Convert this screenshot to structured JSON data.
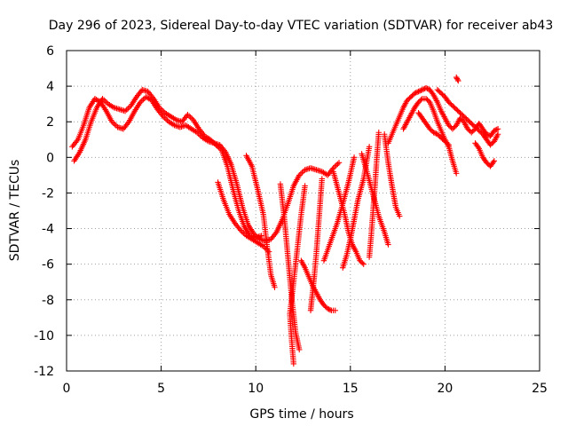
{
  "chart_data": {
    "type": "scatter",
    "title": "Day 296 of 2023, Sidereal Day-to-day VTEC variation (SDTVAR) for receiver ab43",
    "xlabel": "GPS time / hours",
    "ylabel": "SDTVAR / TECUs",
    "xlim": [
      0,
      25
    ],
    "ylim": [
      -12,
      6
    ],
    "xticks": [
      "0",
      "5",
      "10",
      "15",
      "20",
      "25"
    ],
    "yticks": [
      "6",
      "4",
      "2",
      "0",
      "-2",
      "-4",
      "-6",
      "-8",
      "-10",
      "-12"
    ],
    "grid": true,
    "marker": "plus",
    "color": "#ff0000",
    "series": [
      {
        "name": "arc-1",
        "points": [
          [
            0.3,
            0.6
          ],
          [
            0.6,
            1.0
          ],
          [
            0.9,
            1.8
          ],
          [
            1.2,
            2.8
          ],
          [
            1.5,
            3.3
          ],
          [
            1.8,
            3.1
          ],
          [
            2.1,
            2.6
          ],
          [
            2.4,
            2.0
          ],
          [
            2.7,
            1.7
          ],
          [
            3.0,
            1.6
          ],
          [
            3.3,
            2.0
          ],
          [
            3.6,
            2.6
          ],
          [
            3.9,
            3.1
          ],
          [
            4.2,
            3.4
          ],
          [
            4.5,
            3.2
          ],
          [
            4.8,
            2.7
          ],
          [
            5.1,
            2.3
          ],
          [
            5.4,
            2.0
          ],
          [
            5.7,
            1.8
          ],
          [
            6.0,
            1.7
          ],
          [
            6.3,
            1.8
          ],
          [
            6.6,
            1.6
          ],
          [
            6.9,
            1.4
          ],
          [
            7.2,
            1.1
          ],
          [
            7.5,
            0.9
          ],
          [
            7.8,
            0.8
          ],
          [
            8.1,
            0.7
          ],
          [
            8.4,
            0.3
          ],
          [
            8.7,
            -0.4
          ],
          [
            9.0,
            -1.5
          ],
          [
            9.3,
            -2.8
          ],
          [
            9.6,
            -3.8
          ],
          [
            9.9,
            -4.3
          ],
          [
            10.2,
            -4.6
          ],
          [
            10.5,
            -4.7
          ],
          [
            10.8,
            -4.6
          ],
          [
            11.1,
            -4.2
          ],
          [
            11.4,
            -3.5
          ],
          [
            11.7,
            -2.6
          ],
          [
            12.0,
            -1.6
          ],
          [
            12.3,
            -1.0
          ],
          [
            12.6,
            -0.7
          ],
          [
            12.9,
            -0.6
          ],
          [
            13.2,
            -0.7
          ],
          [
            13.5,
            -0.8
          ],
          [
            13.8,
            -1.0
          ],
          [
            14.1,
            -0.6
          ],
          [
            14.4,
            -0.3
          ]
        ]
      },
      {
        "name": "arc-2",
        "points": [
          [
            0.4,
            -0.2
          ],
          [
            0.7,
            0.3
          ],
          [
            1.0,
            1.0
          ],
          [
            1.3,
            2.0
          ],
          [
            1.6,
            2.8
          ],
          [
            1.9,
            3.3
          ],
          [
            2.2,
            3.0
          ],
          [
            2.5,
            2.8
          ],
          [
            2.8,
            2.7
          ],
          [
            3.1,
            2.6
          ],
          [
            3.4,
            2.9
          ],
          [
            3.7,
            3.4
          ],
          [
            4.0,
            3.8
          ],
          [
            4.3,
            3.7
          ],
          [
            4.6,
            3.3
          ],
          [
            4.9,
            2.8
          ],
          [
            5.2,
            2.5
          ],
          [
            5.5,
            2.3
          ],
          [
            5.8,
            2.1
          ],
          [
            6.1,
            2.0
          ],
          [
            6.4,
            2.4
          ],
          [
            6.7,
            2.1
          ],
          [
            7.0,
            1.6
          ],
          [
            7.3,
            1.2
          ],
          [
            7.6,
            1.0
          ],
          [
            7.9,
            0.7
          ],
          [
            8.2,
            0.4
          ],
          [
            8.5,
            -0.5
          ],
          [
            8.8,
            -1.8
          ],
          [
            9.1,
            -3.0
          ],
          [
            9.4,
            -3.9
          ],
          [
            9.7,
            -4.4
          ],
          [
            10.0,
            -4.5
          ],
          [
            10.3,
            -4.4
          ]
        ]
      },
      {
        "name": "arc-3",
        "points": [
          [
            8.0,
            -1.4
          ],
          [
            8.3,
            -2.4
          ],
          [
            8.6,
            -3.2
          ],
          [
            8.9,
            -3.7
          ],
          [
            9.2,
            -4.1
          ],
          [
            9.5,
            -4.4
          ],
          [
            9.8,
            -4.6
          ],
          [
            10.1,
            -4.8
          ],
          [
            10.4,
            -5.0
          ],
          [
            10.7,
            -5.3
          ]
        ]
      },
      {
        "name": "arc-4",
        "points": [
          [
            9.5,
            0.1
          ],
          [
            9.8,
            -0.5
          ],
          [
            10.1,
            -1.8
          ],
          [
            10.4,
            -3.2
          ],
          [
            10.6,
            -5.0
          ],
          [
            10.8,
            -6.6
          ],
          [
            11.0,
            -7.3
          ]
        ]
      },
      {
        "name": "arc-5",
        "points": [
          [
            11.3,
            -1.5
          ],
          [
            11.5,
            -3.3
          ],
          [
            11.7,
            -5.6
          ],
          [
            11.9,
            -7.9
          ],
          [
            12.1,
            -9.8
          ],
          [
            12.3,
            -10.8
          ]
        ]
      },
      {
        "name": "arc-6",
        "points": [
          [
            12.6,
            -1.6
          ],
          [
            12.4,
            -3.2
          ],
          [
            12.2,
            -5.1
          ],
          [
            12.0,
            -7.0
          ],
          [
            11.8,
            -8.8
          ],
          [
            11.9,
            -10.3
          ],
          [
            12.0,
            -11.6
          ]
        ]
      },
      {
        "name": "arc-7",
        "points": [
          [
            12.4,
            -5.8
          ],
          [
            12.6,
            -6.2
          ],
          [
            12.8,
            -6.7
          ],
          [
            13.0,
            -7.2
          ],
          [
            13.2,
            -7.6
          ],
          [
            13.4,
            -8.0
          ],
          [
            13.6,
            -8.3
          ],
          [
            13.8,
            -8.5
          ],
          [
            14.0,
            -8.6
          ],
          [
            14.2,
            -8.6
          ]
        ]
      },
      {
        "name": "arc-8",
        "points": [
          [
            13.5,
            -1.2
          ],
          [
            13.4,
            -2.6
          ],
          [
            13.3,
            -4.0
          ],
          [
            13.2,
            -5.4
          ],
          [
            13.1,
            -6.6
          ],
          [
            13.0,
            -7.6
          ],
          [
            12.9,
            -8.6
          ]
        ]
      },
      {
        "name": "arc-9",
        "points": [
          [
            14.1,
            -0.8
          ],
          [
            14.4,
            -2.0
          ],
          [
            14.7,
            -3.2
          ],
          [
            14.9,
            -4.2
          ],
          [
            15.1,
            -4.9
          ],
          [
            15.3,
            -5.3
          ],
          [
            15.5,
            -5.8
          ],
          [
            15.7,
            -6.0
          ]
        ]
      },
      {
        "name": "arc-10",
        "points": [
          [
            15.2,
            0.0
          ],
          [
            14.9,
            -1.4
          ],
          [
            14.6,
            -2.6
          ],
          [
            14.3,
            -3.7
          ],
          [
            14.0,
            -4.6
          ],
          [
            13.8,
            -5.2
          ],
          [
            13.6,
            -5.8
          ]
        ]
      },
      {
        "name": "arc-11",
        "points": [
          [
            15.6,
            0.2
          ],
          [
            15.9,
            -0.9
          ],
          [
            16.2,
            -2.1
          ],
          [
            16.5,
            -3.3
          ],
          [
            16.8,
            -4.2
          ],
          [
            17.0,
            -4.9
          ]
        ]
      },
      {
        "name": "arc-12",
        "points": [
          [
            16.0,
            0.6
          ],
          [
            15.7,
            -1.2
          ],
          [
            15.4,
            -2.4
          ],
          [
            15.2,
            -3.5
          ],
          [
            15.0,
            -4.6
          ],
          [
            14.8,
            -5.5
          ],
          [
            14.6,
            -6.2
          ]
        ]
      },
      {
        "name": "arc-13",
        "points": [
          [
            16.5,
            1.4
          ],
          [
            16.4,
            0.0
          ],
          [
            16.3,
            -1.6
          ],
          [
            16.2,
            -3.0
          ],
          [
            16.1,
            -4.4
          ],
          [
            16.0,
            -5.6
          ]
        ]
      },
      {
        "name": "arc-14",
        "points": [
          [
            16.8,
            1.3
          ],
          [
            17.0,
            -0.3
          ],
          [
            17.2,
            -1.6
          ],
          [
            17.4,
            -2.8
          ],
          [
            17.6,
            -3.3
          ]
        ]
      },
      {
        "name": "arc-15",
        "points": [
          [
            17.0,
            0.8
          ],
          [
            17.2,
            1.3
          ],
          [
            17.4,
            1.8
          ],
          [
            17.6,
            2.3
          ],
          [
            17.8,
            2.8
          ],
          [
            18.0,
            3.2
          ],
          [
            18.2,
            3.4
          ],
          [
            18.4,
            3.6
          ],
          [
            18.6,
            3.7
          ],
          [
            18.8,
            3.8
          ],
          [
            19.0,
            3.9
          ],
          [
            19.2,
            3.8
          ],
          [
            19.4,
            3.5
          ],
          [
            19.6,
            3.1
          ],
          [
            19.8,
            2.6
          ],
          [
            20.0,
            2.2
          ],
          [
            20.2,
            1.8
          ],
          [
            20.4,
            1.6
          ],
          [
            20.6,
            1.8
          ],
          [
            20.8,
            2.2
          ],
          [
            21.0,
            2.0
          ],
          [
            21.2,
            1.6
          ],
          [
            21.4,
            1.4
          ],
          [
            21.6,
            1.6
          ],
          [
            21.8,
            1.9
          ],
          [
            22.0,
            1.6
          ],
          [
            22.2,
            1.3
          ],
          [
            22.4,
            1.2
          ],
          [
            22.6,
            1.5
          ],
          [
            22.8,
            1.6
          ]
        ]
      },
      {
        "name": "arc-16",
        "points": [
          [
            17.8,
            1.6
          ],
          [
            18.0,
            2.0
          ],
          [
            18.2,
            2.4
          ],
          [
            18.4,
            2.8
          ],
          [
            18.6,
            3.1
          ],
          [
            18.8,
            3.3
          ],
          [
            19.0,
            3.3
          ],
          [
            19.2,
            3.1
          ],
          [
            19.4,
            2.6
          ],
          [
            19.6,
            2.0
          ],
          [
            19.8,
            1.5
          ],
          [
            20.0,
            1.0
          ],
          [
            20.2,
            0.6
          ],
          [
            20.4,
            -0.2
          ],
          [
            20.6,
            -0.9
          ]
        ]
      },
      {
        "name": "arc-17",
        "points": [
          [
            18.6,
            2.5
          ],
          [
            18.8,
            2.2
          ],
          [
            19.0,
            1.9
          ],
          [
            19.2,
            1.6
          ],
          [
            19.4,
            1.4
          ],
          [
            19.6,
            1.3
          ],
          [
            19.8,
            1.1
          ],
          [
            20.0,
            0.9
          ],
          [
            20.2,
            0.7
          ]
        ]
      },
      {
        "name": "arc-18",
        "points": [
          [
            19.6,
            3.8
          ],
          [
            19.8,
            3.6
          ],
          [
            20.0,
            3.4
          ],
          [
            20.2,
            3.1
          ],
          [
            20.4,
            2.9
          ],
          [
            20.6,
            2.7
          ],
          [
            20.8,
            2.5
          ],
          [
            21.0,
            2.3
          ],
          [
            21.2,
            2.1
          ],
          [
            21.4,
            1.9
          ],
          [
            21.6,
            1.7
          ],
          [
            21.8,
            1.5
          ],
          [
            22.0,
            1.3
          ],
          [
            22.2,
            1.0
          ],
          [
            22.4,
            0.7
          ],
          [
            22.6,
            0.9
          ],
          [
            22.8,
            1.3
          ]
        ]
      },
      {
        "name": "arc-19",
        "points": [
          [
            20.6,
            4.5
          ],
          [
            20.7,
            4.3
          ]
        ]
      },
      {
        "name": "arc-20",
        "points": [
          [
            21.6,
            0.8
          ],
          [
            21.8,
            0.5
          ],
          [
            22.0,
            0.0
          ],
          [
            22.2,
            -0.3
          ],
          [
            22.4,
            -0.5
          ],
          [
            22.6,
            -0.2
          ]
        ]
      }
    ]
  }
}
